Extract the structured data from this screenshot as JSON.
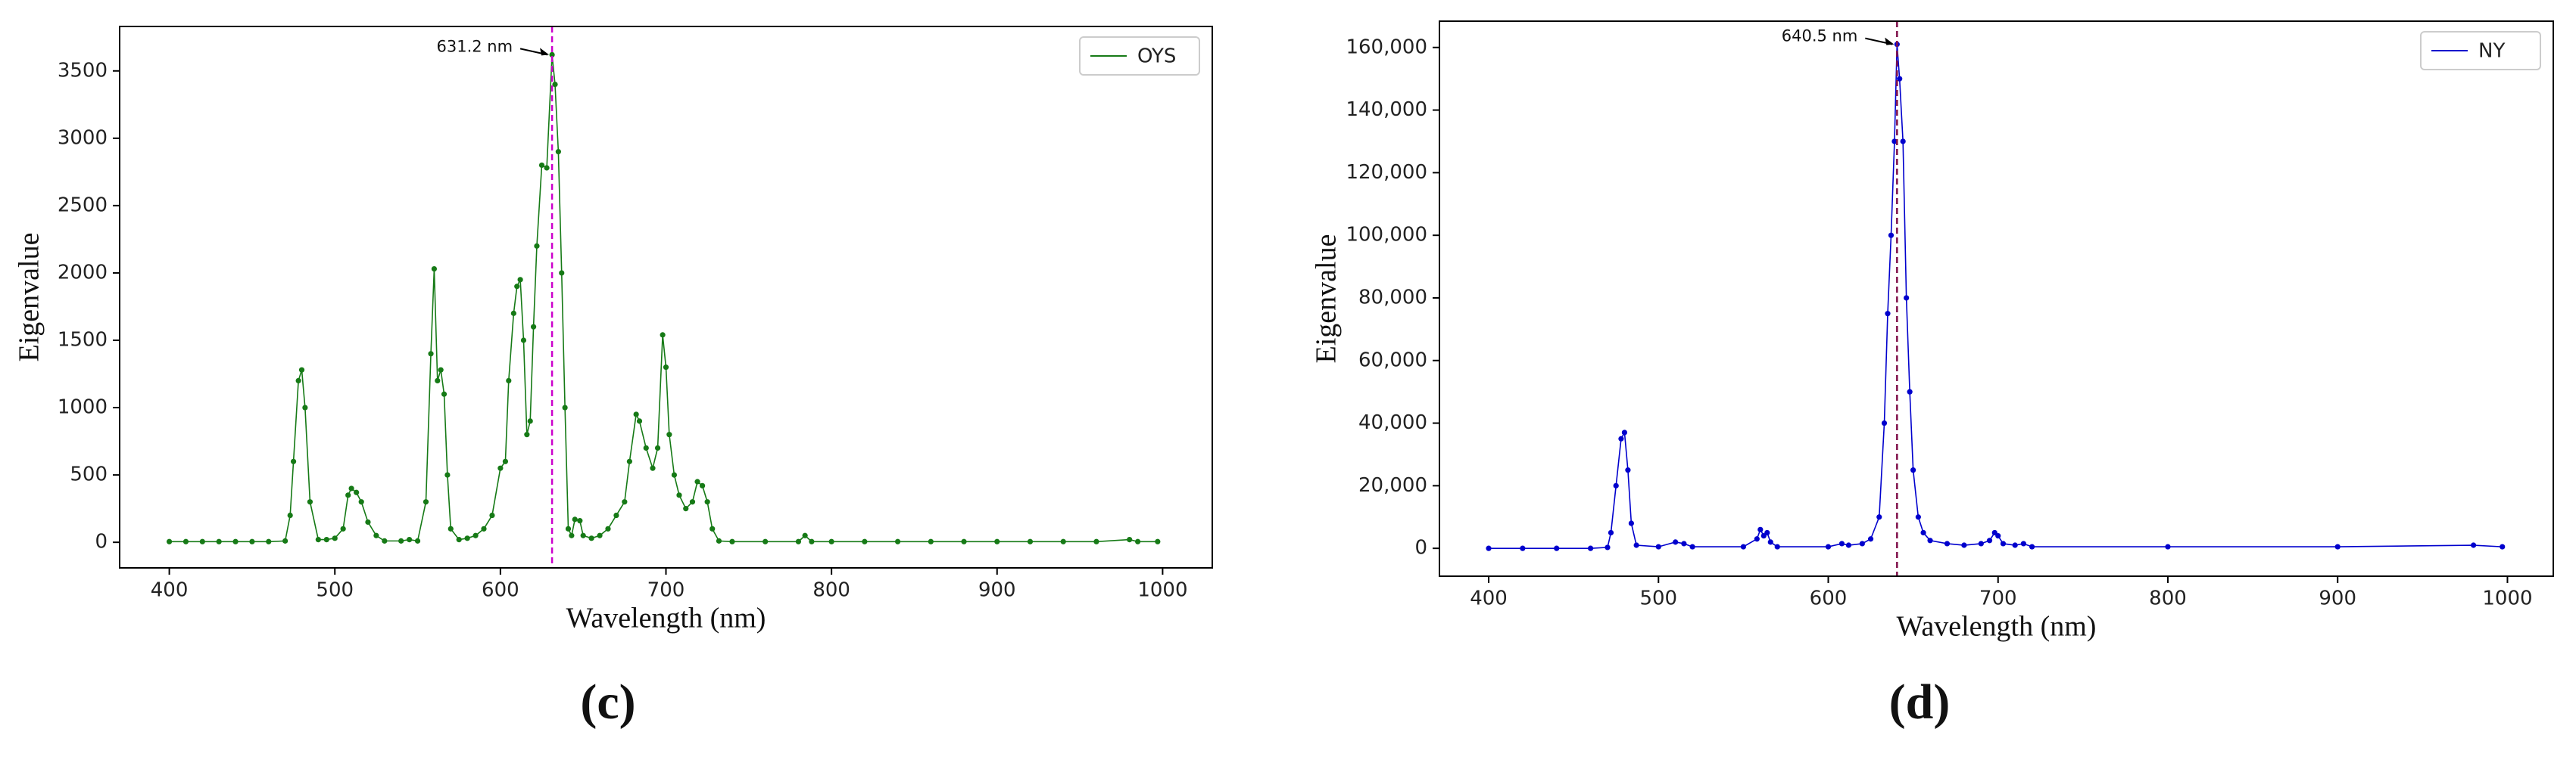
{
  "chart_data": [
    {
      "type": "line",
      "panel_label": "(c)",
      "xlabel": "Wavelength (nm)",
      "ylabel": "Eigenvalue",
      "x": [
        400,
        410,
        420,
        430,
        440,
        450,
        460,
        470,
        473,
        475,
        478,
        480,
        482,
        485,
        490,
        495,
        500,
        505,
        508,
        510,
        513,
        516,
        520,
        525,
        530,
        540,
        545,
        550,
        555,
        558,
        560,
        562,
        564,
        566,
        568,
        570,
        575,
        580,
        585,
        590,
        595,
        600,
        603,
        605,
        608,
        610,
        612,
        614,
        616,
        618,
        620,
        622,
        625,
        628,
        631.2,
        633,
        635,
        637,
        639,
        641,
        643,
        645,
        648,
        650,
        655,
        660,
        665,
        670,
        675,
        678,
        682,
        684,
        688,
        692,
        695,
        698,
        700,
        702,
        705,
        708,
        712,
        716,
        719,
        722,
        725,
        728,
        732,
        740,
        760,
        780,
        784,
        788,
        800,
        820,
        840,
        860,
        880,
        900,
        920,
        940,
        960,
        980,
        985,
        997
      ],
      "series": [
        {
          "name": "OYS",
          "color": "#167a16",
          "values": [
            5,
            5,
            5,
            5,
            5,
            5,
            5,
            10,
            200,
            600,
            1200,
            1280,
            1000,
            300,
            20,
            20,
            30,
            100,
            350,
            400,
            370,
            300,
            150,
            50,
            10,
            10,
            20,
            10,
            300,
            1400,
            2030,
            1200,
            1280,
            1100,
            500,
            100,
            20,
            30,
            50,
            100,
            200,
            550,
            600,
            1200,
            1700,
            1900,
            1950,
            1500,
            800,
            900,
            1600,
            2200,
            2800,
            2780,
            3620,
            3400,
            2900,
            2000,
            1000,
            100,
            50,
            170,
            160,
            50,
            30,
            50,
            100,
            200,
            300,
            600,
            950,
            900,
            700,
            550,
            700,
            1540,
            1300,
            800,
            500,
            350,
            250,
            300,
            450,
            420,
            300,
            100,
            10,
            5,
            5,
            5,
            50,
            5,
            5,
            5,
            5,
            5,
            5,
            5,
            5,
            5,
            5,
            20,
            5,
            5
          ]
        }
      ],
      "xlim": [
        370,
        1030
      ],
      "ylim": [
        -190,
        3830
      ],
      "xticks": [
        400,
        500,
        600,
        700,
        800,
        900,
        1000
      ],
      "yticks": [
        0,
        500,
        1000,
        1500,
        2000,
        2500,
        3000,
        3500
      ],
      "annotation": {
        "text": "631.2 nm",
        "x": 631.2,
        "color": "#cc00cc"
      },
      "legend": "upper right"
    },
    {
      "type": "line",
      "panel_label": "(d)",
      "xlabel": "Wavelength (nm)",
      "ylabel": "Eigenvalue",
      "x": [
        400,
        420,
        440,
        460,
        470,
        472,
        475,
        478,
        480,
        482,
        484,
        487,
        500,
        510,
        515,
        520,
        550,
        558,
        560,
        562,
        564,
        566,
        570,
        600,
        608,
        612,
        620,
        625,
        630,
        633,
        635,
        637,
        639,
        640.5,
        642,
        644,
        646,
        648,
        650,
        653,
        656,
        660,
        670,
        680,
        690,
        695,
        698,
        700,
        703,
        710,
        715,
        720,
        800,
        900,
        980,
        997
      ],
      "series": [
        {
          "name": "NY",
          "color": "#0000cd",
          "values": [
            0,
            0,
            0,
            0,
            300,
            5000,
            20000,
            35000,
            37000,
            25000,
            8000,
            1000,
            500,
            2000,
            1500,
            500,
            500,
            3000,
            6000,
            4000,
            5000,
            2000,
            500,
            500,
            1500,
            1000,
            1500,
            3000,
            10000,
            40000,
            75000,
            100000,
            130000,
            161000,
            150000,
            130000,
            80000,
            50000,
            25000,
            10000,
            5000,
            2500,
            1500,
            1000,
            1500,
            2500,
            5000,
            4000,
            1500,
            1000,
            1500,
            500,
            500,
            500,
            1000,
            500
          ]
        }
      ],
      "xlim": [
        371,
        1027
      ],
      "ylim": [
        -8900,
        168400
      ],
      "xticks": [
        400,
        500,
        600,
        700,
        800,
        900,
        1000
      ],
      "yticks": [
        0,
        {
          "value": 20000,
          "label": "20,000"
        },
        {
          "value": 40000,
          "label": "40,000"
        },
        {
          "value": 60000,
          "label": "60,000"
        },
        {
          "value": 80000,
          "label": "80,000"
        },
        {
          "value": 100000,
          "label": "100,000"
        },
        {
          "value": 120000,
          "label": "120,000"
        },
        {
          "value": 140000,
          "label": "140,000"
        },
        {
          "value": 160000,
          "label": "160,000"
        }
      ],
      "annotation": {
        "text": "640.5 nm",
        "x": 640.5,
        "color": "#80104a"
      },
      "legend": "upper right"
    }
  ]
}
